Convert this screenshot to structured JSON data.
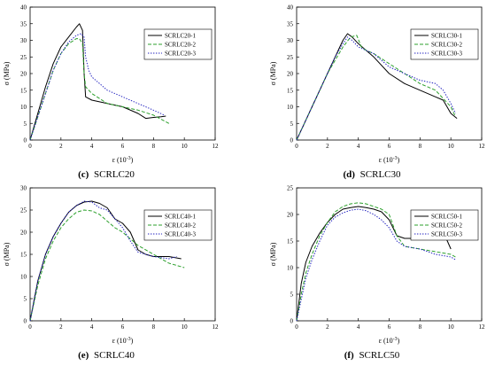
{
  "figure": {
    "panels": [
      {
        "id": "c",
        "caption_letter": "(c)",
        "caption_text": "SCRLC20"
      },
      {
        "id": "d",
        "caption_letter": "(d)",
        "caption_text": "SCRLC30"
      },
      {
        "id": "e",
        "caption_letter": "(e)",
        "caption_text": "SCRLC40"
      },
      {
        "id": "f",
        "caption_letter": "(f)",
        "caption_text": "SCRLC50"
      }
    ]
  },
  "chart_data": [
    {
      "type": "line",
      "panel": "c",
      "title": "",
      "xlabel_main": "ε",
      "xlabel_unit": "(10",
      "xlabel_exp": "-3",
      "xlabel_close": ")",
      "ylabel": "σ (MPa)",
      "xlim": [
        0,
        12
      ],
      "ylim": [
        0,
        40
      ],
      "xticks": [
        0,
        2,
        4,
        6,
        8,
        10,
        12
      ],
      "yticks": [
        0,
        5,
        10,
        15,
        20,
        25,
        30,
        35,
        40
      ],
      "grid": false,
      "legend_position": "top-right",
      "series": [
        {
          "name": "SCRLC20-1",
          "color": "#000000",
          "dash": "solid",
          "x": [
            0,
            0.5,
            1.0,
            1.5,
            2.0,
            2.5,
            3.0,
            3.2,
            3.4,
            3.5,
            3.6,
            4.0,
            5.0,
            6.0,
            7.0,
            7.5,
            8.0,
            8.5,
            8.8
          ],
          "y": [
            0,
            8,
            16,
            23,
            28,
            31,
            34,
            35,
            33,
            20,
            13,
            12,
            11,
            10,
            8,
            6.5,
            6.8,
            7,
            7.2
          ]
        },
        {
          "name": "SCRLC20-2",
          "color": "#2ca02c",
          "dash": "dashed",
          "x": [
            0,
            0.5,
            1.0,
            1.5,
            2.0,
            2.5,
            3.0,
            3.2,
            3.4,
            3.5,
            3.6,
            4.0,
            5.0,
            6.0,
            7.0,
            8.0,
            9.0
          ],
          "y": [
            0,
            7,
            14,
            21,
            26,
            29,
            30.5,
            30.5,
            29,
            20,
            16,
            14,
            11,
            10,
            9,
            7.5,
            5
          ]
        },
        {
          "name": "SCRLC20-3",
          "color": "#1f1fbf",
          "dash": "dotted",
          "x": [
            0,
            0.5,
            1.0,
            1.5,
            2.0,
            2.5,
            3.0,
            3.3,
            3.5,
            3.6,
            3.8,
            4.0,
            4.5,
            5.0,
            6.0,
            7.0,
            8.0,
            8.7
          ],
          "y": [
            0,
            7,
            14,
            21,
            26,
            29.5,
            31.5,
            32,
            31,
            25,
            21,
            19,
            17,
            15,
            13,
            11,
            9,
            7.5
          ]
        }
      ]
    },
    {
      "type": "line",
      "panel": "d",
      "title": "",
      "xlabel_main": "ε",
      "xlabel_unit": "(10",
      "xlabel_exp": "-3",
      "xlabel_close": ")",
      "ylabel": "σ (MPa)",
      "xlim": [
        0,
        12
      ],
      "ylim": [
        0,
        40
      ],
      "xticks": [
        0,
        2,
        4,
        6,
        8,
        10,
        12
      ],
      "yticks": [
        0,
        5,
        10,
        15,
        20,
        25,
        30,
        35,
        40
      ],
      "grid": false,
      "legend_position": "top-right",
      "series": [
        {
          "name": "SCRLC30-1",
          "color": "#000000",
          "dash": "solid",
          "x": [
            0,
            0.5,
            1.0,
            1.5,
            2.0,
            2.5,
            3.0,
            3.3,
            3.6,
            4.0,
            4.5,
            5.0,
            6.0,
            7.0,
            8.0,
            9.0,
            9.5,
            10.0,
            10.4
          ],
          "y": [
            0,
            5,
            10,
            15,
            20,
            25,
            30,
            32,
            31,
            29,
            27,
            25,
            20,
            17,
            15,
            13,
            12,
            8,
            6.5
          ]
        },
        {
          "name": "SCRLC30-2",
          "color": "#2ca02c",
          "dash": "dashed",
          "x": [
            0,
            0.5,
            1.0,
            1.5,
            2.0,
            2.5,
            3.0,
            3.5,
            3.9,
            4.2,
            4.5,
            5.0,
            6.0,
            7.0,
            8.0,
            9.0,
            10.0,
            10.3
          ],
          "y": [
            0,
            5,
            10,
            15,
            20,
            24,
            28,
            31,
            31.5,
            28,
            27,
            26,
            23,
            20,
            17,
            15,
            10,
            7
          ]
        },
        {
          "name": "SCRLC30-3",
          "color": "#1f1fbf",
          "dash": "dotted",
          "x": [
            0,
            0.5,
            1.0,
            1.5,
            2.0,
            2.5,
            3.0,
            3.3,
            3.6,
            4.0,
            4.5,
            5.0,
            6.0,
            7.0,
            8.0,
            9.0,
            9.5,
            10.0,
            10.3
          ],
          "y": [
            0,
            5,
            10,
            15,
            20,
            25,
            29,
            31,
            30,
            28,
            27,
            26,
            22,
            20,
            18,
            17,
            15,
            11,
            8
          ]
        }
      ]
    },
    {
      "type": "line",
      "panel": "e",
      "title": "",
      "xlabel_main": "ε",
      "xlabel_unit": "(10",
      "xlabel_exp": "-3",
      "xlabel_close": ")",
      "ylabel": "σ (MPa)",
      "xlim": [
        0,
        12
      ],
      "ylim": [
        0,
        30
      ],
      "xticks": [
        0,
        2,
        4,
        6,
        8,
        10,
        12
      ],
      "yticks": [
        0,
        5,
        10,
        15,
        20,
        25,
        30
      ],
      "grid": false,
      "legend_position": "top-right",
      "series": [
        {
          "name": "SCRLC40-1",
          "color": "#000000",
          "dash": "solid",
          "x": [
            0,
            0.5,
            1.0,
            1.5,
            2.0,
            2.5,
            3.0,
            3.5,
            4.0,
            4.5,
            5.0,
            5.5,
            6.0,
            6.5,
            7.0,
            7.5,
            8.0,
            9.0,
            9.8
          ],
          "y": [
            0,
            9,
            15,
            19,
            22,
            24.5,
            26,
            26.8,
            27,
            26.5,
            25.5,
            23,
            22,
            20,
            16,
            15,
            14.5,
            14.5,
            14
          ]
        },
        {
          "name": "SCRLC40-2",
          "color": "#2ca02c",
          "dash": "dashed",
          "x": [
            0,
            0.5,
            1.0,
            1.5,
            2.0,
            2.5,
            3.0,
            3.5,
            4.0,
            4.5,
            5.0,
            5.5,
            6.0,
            7.0,
            8.0,
            9.0,
            10.0
          ],
          "y": [
            0,
            8,
            14,
            18,
            21,
            23,
            24.5,
            25,
            24.8,
            24,
            22.5,
            21,
            20,
            17,
            15,
            13,
            12
          ]
        },
        {
          "name": "SCRLC40-3",
          "color": "#1f1fbf",
          "dash": "dotted",
          "x": [
            0,
            0.5,
            1.0,
            1.5,
            2.0,
            2.5,
            3.0,
            3.5,
            4.0,
            4.5,
            5.0,
            5.5,
            6.0,
            6.5,
            7.0,
            7.5,
            8.0,
            9.0,
            9.5
          ],
          "y": [
            0,
            9,
            15,
            19,
            22,
            24.5,
            26,
            27,
            26.8,
            25.5,
            25,
            23,
            21,
            18,
            15.5,
            15,
            14.5,
            14,
            14.5
          ]
        }
      ]
    },
    {
      "type": "line",
      "panel": "f",
      "title": "",
      "xlabel_main": "ε",
      "xlabel_unit": "(10",
      "xlabel_exp": "-3",
      "xlabel_close": ")",
      "ylabel": "σ (MPa)",
      "xlim": [
        0,
        12
      ],
      "ylim": [
        0,
        25
      ],
      "xticks": [
        0,
        2,
        4,
        6,
        8,
        10,
        12
      ],
      "yticks": [
        0,
        5,
        10,
        15,
        20,
        25
      ],
      "grid": false,
      "legend_position": "top-right",
      "series": [
        {
          "name": "SCRLC50-1",
          "color": "#000000",
          "dash": "solid",
          "x": [
            0,
            0.3,
            0.6,
            1.0,
            1.5,
            2.0,
            2.5,
            3.0,
            3.5,
            4.0,
            4.5,
            5.0,
            5.5,
            6.0,
            6.5,
            7.0,
            8.0,
            9.0,
            9.7,
            10.0
          ],
          "y": [
            0,
            7,
            11,
            14,
            16.5,
            18.5,
            20,
            21,
            21.3,
            21.5,
            21.3,
            21,
            20.5,
            19,
            16,
            15.5,
            15.5,
            15.5,
            15.5,
            13.5
          ]
        },
        {
          "name": "SCRLC50-2",
          "color": "#2ca02c",
          "dash": "dashed",
          "x": [
            0,
            0.3,
            0.6,
            1.0,
            1.5,
            2.0,
            2.5,
            3.0,
            3.5,
            4.0,
            4.5,
            5.0,
            5.5,
            6.0,
            6.5,
            7.0,
            8.0,
            9.0,
            10.0,
            10.3
          ],
          "y": [
            0,
            5,
            9,
            12.5,
            16,
            18.5,
            20.5,
            21.5,
            22,
            22.2,
            22,
            21.5,
            21,
            20,
            16,
            14,
            13.5,
            13,
            12.5,
            12
          ]
        },
        {
          "name": "SCRLC50-3",
          "color": "#1f1fbf",
          "dash": "dotted",
          "x": [
            0,
            0.3,
            0.6,
            1.0,
            1.5,
            2.0,
            2.5,
            3.0,
            3.5,
            4.0,
            4.5,
            5.0,
            5.5,
            6.0,
            6.5,
            7.0,
            8.0,
            9.0,
            10.0,
            10.3
          ],
          "y": [
            0,
            4,
            8,
            11.5,
            15,
            18,
            19.5,
            20.3,
            20.8,
            21,
            20.7,
            20,
            19,
            17.5,
            15,
            14,
            13.5,
            12.5,
            12,
            11.5
          ]
        }
      ]
    }
  ]
}
